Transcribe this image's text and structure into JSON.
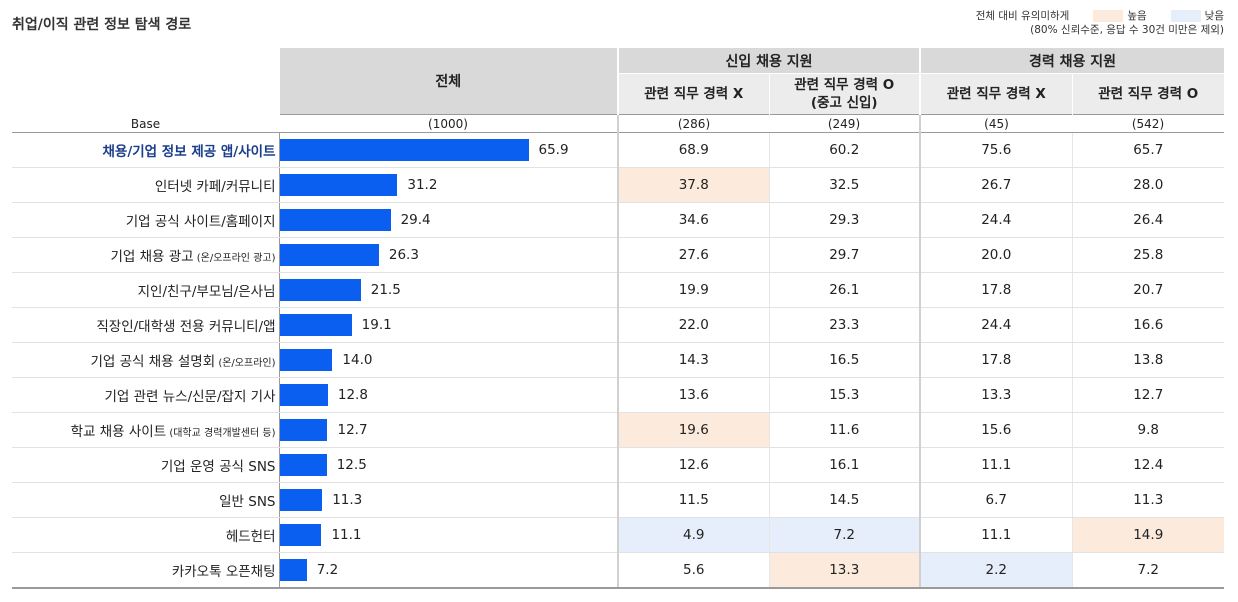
{
  "title": "취업/이직 관련 정보 탐색 경로",
  "legend": {
    "label": "전체 대비 유의미하게",
    "high_label": "높음",
    "low_label": "낮음",
    "note": "(80% 신뢰수준, 응답 수 30건 미만은 제외)",
    "high_color": "#fcebdc",
    "low_color": "#e6eefb"
  },
  "header": {
    "total": "전체",
    "group1": "신입 채용 지원",
    "group2": "경력 채용 지원",
    "g1_col1": "관련 직무 경력 X",
    "g1_col2_line1": "관련 직무 경력 O",
    "g1_col2_line2": "(중고 신입)",
    "g2_col1": "관련 직무 경력 X",
    "g2_col2": "관련 직무 경력 O"
  },
  "base": {
    "label": "Base",
    "total": "(1000)",
    "c1": "(286)",
    "c2": "(249)",
    "c3": "(45)",
    "c4": "(542)"
  },
  "chart_data": {
    "type": "table",
    "bar_color": "#0b5ff0",
    "xlim": [
      0,
      100
    ],
    "columns": [
      "전체",
      "신입 채용 지원 - 관련 직무 경력 X",
      "신입 채용 지원 - 관련 직무 경력 O (중고 신입)",
      "경력 채용 지원 - 관련 직무 경력 X",
      "경력 채용 지원 - 관련 직무 경력 O"
    ],
    "rows": [
      {
        "label": "채용/기업 정보 제공 앱/사이트",
        "note": "",
        "highlight": true,
        "total": 65.9,
        "values": [
          68.9,
          60.2,
          75.6,
          65.7
        ],
        "flags": [
          "",
          "",
          "",
          ""
        ]
      },
      {
        "label": "인터넷 카페/커뮤니티",
        "note": "",
        "highlight": false,
        "total": 31.2,
        "values": [
          37.8,
          32.5,
          26.7,
          28.0
        ],
        "flags": [
          "hi",
          "",
          "",
          ""
        ]
      },
      {
        "label": "기업 공식 사이트/홈페이지",
        "note": "",
        "highlight": false,
        "total": 29.4,
        "values": [
          34.6,
          29.3,
          24.4,
          26.4
        ],
        "flags": [
          "",
          "",
          "",
          ""
        ]
      },
      {
        "label": "기업 채용 광고",
        "note": "(온/오프라인 광고)",
        "highlight": false,
        "total": 26.3,
        "values": [
          27.6,
          29.7,
          20.0,
          25.8
        ],
        "flags": [
          "",
          "",
          "",
          ""
        ]
      },
      {
        "label": "지인/친구/부모님/은사님",
        "note": "",
        "highlight": false,
        "total": 21.5,
        "values": [
          19.9,
          26.1,
          17.8,
          20.7
        ],
        "flags": [
          "",
          "",
          "",
          ""
        ]
      },
      {
        "label": "직장인/대학생 전용 커뮤니티/앱",
        "note": "",
        "highlight": false,
        "total": 19.1,
        "values": [
          22.0,
          23.3,
          24.4,
          16.6
        ],
        "flags": [
          "",
          "",
          "",
          ""
        ]
      },
      {
        "label": "기업 공식 채용 설명회",
        "note": "(온/오프라인)",
        "highlight": false,
        "total": 14.0,
        "values": [
          14.3,
          16.5,
          17.8,
          13.8
        ],
        "flags": [
          "",
          "",
          "",
          ""
        ]
      },
      {
        "label": "기업 관련 뉴스/신문/잡지 기사",
        "note": "",
        "highlight": false,
        "total": 12.8,
        "values": [
          13.6,
          15.3,
          13.3,
          12.7
        ],
        "flags": [
          "",
          "",
          "",
          ""
        ]
      },
      {
        "label": "학교 채용 사이트",
        "note": "(대학교 경력개발센터 등)",
        "highlight": false,
        "total": 12.7,
        "values": [
          19.6,
          11.6,
          15.6,
          9.8
        ],
        "flags": [
          "hi",
          "",
          "",
          ""
        ]
      },
      {
        "label": "기업 운영 공식 SNS",
        "note": "",
        "highlight": false,
        "total": 12.5,
        "values": [
          12.6,
          16.1,
          11.1,
          12.4
        ],
        "flags": [
          "",
          "",
          "",
          ""
        ]
      },
      {
        "label": "일반 SNS",
        "note": "",
        "highlight": false,
        "total": 11.3,
        "values": [
          11.5,
          14.5,
          6.7,
          11.3
        ],
        "flags": [
          "",
          "",
          "",
          ""
        ]
      },
      {
        "label": "헤드헌터",
        "note": "",
        "highlight": false,
        "total": 11.1,
        "values": [
          4.9,
          7.2,
          11.1,
          14.9
        ],
        "flags": [
          "lo",
          "lo",
          "",
          "hi"
        ]
      },
      {
        "label": "카카오톡 오픈채팅",
        "note": "",
        "highlight": false,
        "total": 7.2,
        "values": [
          5.6,
          13.3,
          2.2,
          7.2
        ],
        "flags": [
          "",
          "hi",
          "lo",
          ""
        ]
      }
    ]
  }
}
